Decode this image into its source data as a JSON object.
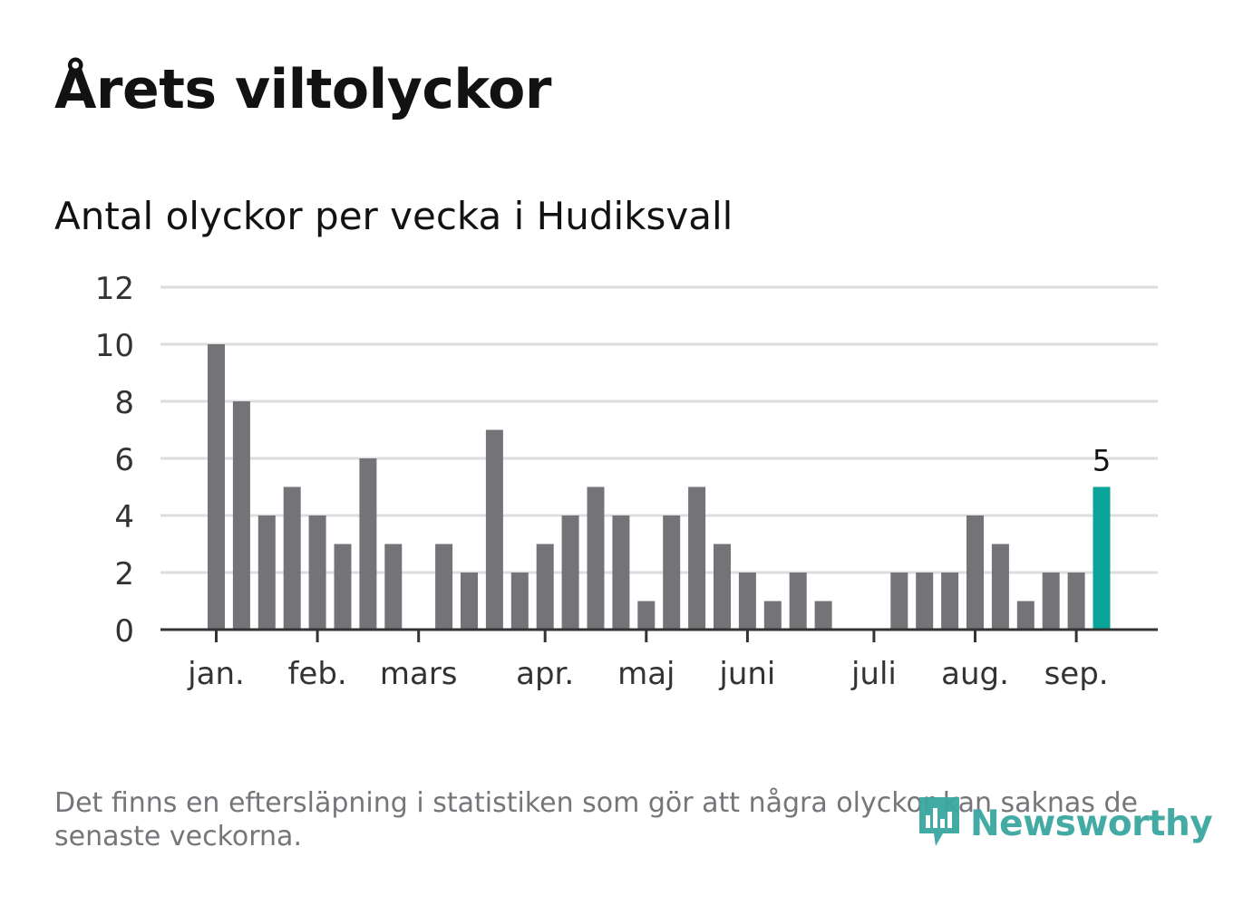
{
  "header": {
    "title": "Årets viltolyckor",
    "subtitle": "Antal olyckor per vecka i Hudiksvall"
  },
  "footnote": "Det finns en eftersläpning i statistiken som gör att några olyckor kan saknas de senaste veckorna.",
  "brand": {
    "name": "Newsworthy",
    "color": "#3ba7a0",
    "icon": "newsworthy-logo-icon"
  },
  "chart_data": {
    "type": "bar",
    "title": "",
    "xlabel": "",
    "ylabel": "",
    "ylim": [
      0,
      12
    ],
    "yticks": [
      0,
      2,
      4,
      6,
      8,
      10,
      12
    ],
    "grid": true,
    "x_unit": "week",
    "month_labels": [
      {
        "label": "jan.",
        "week": 1
      },
      {
        "label": "feb.",
        "week": 5
      },
      {
        "label": "mars",
        "week": 9
      },
      {
        "label": "apr.",
        "week": 14
      },
      {
        "label": "maj",
        "week": 18
      },
      {
        "label": "juni",
        "week": 22
      },
      {
        "label": "juli",
        "week": 27
      },
      {
        "label": "aug.",
        "week": 31
      },
      {
        "label": "sep.",
        "week": 35
      }
    ],
    "weeks": [
      1,
      2,
      3,
      4,
      5,
      6,
      7,
      8,
      9,
      10,
      11,
      12,
      13,
      14,
      15,
      16,
      17,
      18,
      19,
      20,
      21,
      22,
      23,
      24,
      25,
      26,
      27,
      28,
      29,
      30,
      31,
      32,
      33,
      34,
      35,
      36
    ],
    "values": [
      10,
      8,
      4,
      5,
      4,
      3,
      6,
      3,
      0,
      3,
      2,
      7,
      2,
      3,
      4,
      5,
      4,
      1,
      4,
      5,
      3,
      2,
      1,
      2,
      1,
      0,
      0,
      2,
      2,
      2,
      4,
      3,
      1,
      2,
      2,
      5
    ],
    "highlight": {
      "week": 36,
      "value": 5,
      "label": "5"
    },
    "colors": {
      "bar": "#747378",
      "highlight": "#0aa39a",
      "grid": "#dddddd",
      "axis": "#333333"
    }
  }
}
